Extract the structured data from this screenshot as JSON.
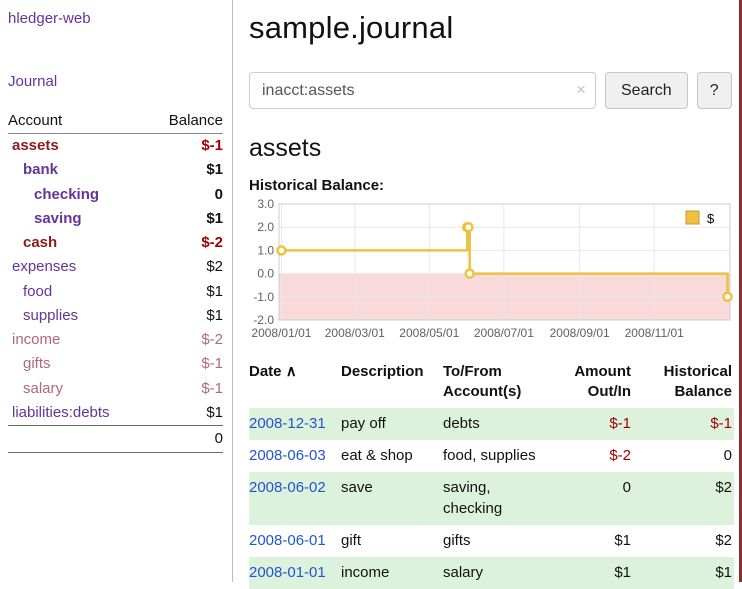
{
  "palette": {
    "purple": "#663399",
    "blue": "#2255cc",
    "red": "#a40000",
    "dark_red": "#8b1c1c",
    "soft_red": "#b0687a",
    "gold": "#edc240",
    "gold_dark": "#c3992f",
    "stripe_green": "#ddf2dd",
    "pink_region": "#f9dada",
    "grid": "#e8e8e8",
    "chart_border": "#cccccc",
    "axis_text": "#606060",
    "sidebar_border": "#bbbbbb",
    "edge_red": "#8c2f2f"
  },
  "sidebar": {
    "app_title": "hledger-web",
    "journal_link": "Journal",
    "accounts_header": {
      "account": "Account",
      "balance": "Balance"
    },
    "accounts": [
      {
        "name": "assets",
        "balance": "$-1",
        "indent": 0,
        "bold": true,
        "name_color": "red",
        "balance_color": "red"
      },
      {
        "name": "bank",
        "balance": "$1",
        "indent": 1,
        "bold": true,
        "name_color": "purple",
        "balance_color": "black"
      },
      {
        "name": "checking",
        "balance": "0",
        "indent": 2,
        "bold": true,
        "name_color": "purple",
        "balance_color": "black"
      },
      {
        "name": "saving",
        "balance": "$1",
        "indent": 2,
        "bold": true,
        "name_color": "purple",
        "balance_color": "black"
      },
      {
        "name": "cash",
        "balance": "$-2",
        "indent": 1,
        "bold": true,
        "name_color": "red",
        "balance_color": "red"
      },
      {
        "name": "expenses",
        "balance": "$2",
        "indent": 0,
        "bold": false,
        "name_color": "purple",
        "balance_color": "black"
      },
      {
        "name": "food",
        "balance": "$1",
        "indent": 1,
        "bold": false,
        "name_color": "purple",
        "balance_color": "black"
      },
      {
        "name": "supplies",
        "balance": "$1",
        "indent": 1,
        "bold": false,
        "name_color": "purple",
        "balance_color": "black"
      },
      {
        "name": "income",
        "balance": "$-2",
        "indent": 0,
        "bold": false,
        "name_color": "soft",
        "balance_color": "soft"
      },
      {
        "name": "gifts",
        "balance": "$-1",
        "indent": 1,
        "bold": false,
        "name_color": "soft",
        "balance_color": "soft"
      },
      {
        "name": "salary",
        "balance": "$-1",
        "indent": 1,
        "bold": false,
        "name_color": "soft",
        "balance_color": "soft"
      },
      {
        "name": "liabilities:debts",
        "balance": "$1",
        "indent": 0,
        "bold": false,
        "name_color": "purple",
        "balance_color": "black"
      }
    ],
    "total": "0"
  },
  "header": {
    "title": "sample.journal"
  },
  "search": {
    "value": "inacct:assets",
    "clear_icon": "×",
    "button_label": "Search",
    "help_label": "?"
  },
  "register": {
    "heading": "assets",
    "chart_label": "Historical Balance:"
  },
  "chart_data": {
    "type": "line",
    "title": "Historical Balance",
    "step": true,
    "xlim": [
      "2007/12/30",
      "2009/01/02"
    ],
    "ylim": [
      -2,
      3
    ],
    "yticks": [
      3,
      2,
      1,
      0,
      -1,
      -2
    ],
    "xticks": [
      "2008/01/01",
      "2008/03/01",
      "2008/05/01",
      "2008/07/01",
      "2008/09/01",
      "2008/11/01"
    ],
    "negative_region": {
      "from": 0,
      "color": "#f9dada"
    },
    "legend_position": "top-right",
    "series": [
      {
        "name": "$",
        "color": "#edc240",
        "marker_fill": "#ffffff",
        "points": [
          [
            "2008/01/01",
            1
          ],
          [
            "2008/06/01",
            2
          ],
          [
            "2008/06/02",
            2
          ],
          [
            "2008/06/03",
            0
          ],
          [
            "2008/12/31",
            -1
          ]
        ]
      }
    ]
  },
  "table": {
    "headers": [
      "Date",
      "Description",
      "To/From Account(s)",
      "Amount Out/In",
      "Historical Balance"
    ],
    "sort_icon": "∧",
    "rows": [
      {
        "date": "2008-12-31",
        "description": "pay off",
        "accounts": "debts",
        "amount": "$-1",
        "amount_color": "red",
        "balance": "$-1",
        "balance_color": "red",
        "shaded": true
      },
      {
        "date": "2008-06-03",
        "description": "eat & shop",
        "accounts": "food, supplies",
        "amount": "$-2",
        "amount_color": "red",
        "balance": "0",
        "balance_color": "black",
        "shaded": false
      },
      {
        "date": "2008-06-02",
        "description": "save",
        "accounts": "saving, checking",
        "amount": "0",
        "amount_color": "black",
        "balance": "$2",
        "balance_color": "black",
        "shaded": true
      },
      {
        "date": "2008-06-01",
        "description": "gift",
        "accounts": "gifts",
        "amount": "$1",
        "amount_color": "black",
        "balance": "$2",
        "balance_color": "black",
        "shaded": false
      },
      {
        "date": "2008-01-01",
        "description": "income",
        "accounts": "salary",
        "amount": "$1",
        "amount_color": "black",
        "balance": "$1",
        "balance_color": "black",
        "shaded": true
      }
    ]
  }
}
